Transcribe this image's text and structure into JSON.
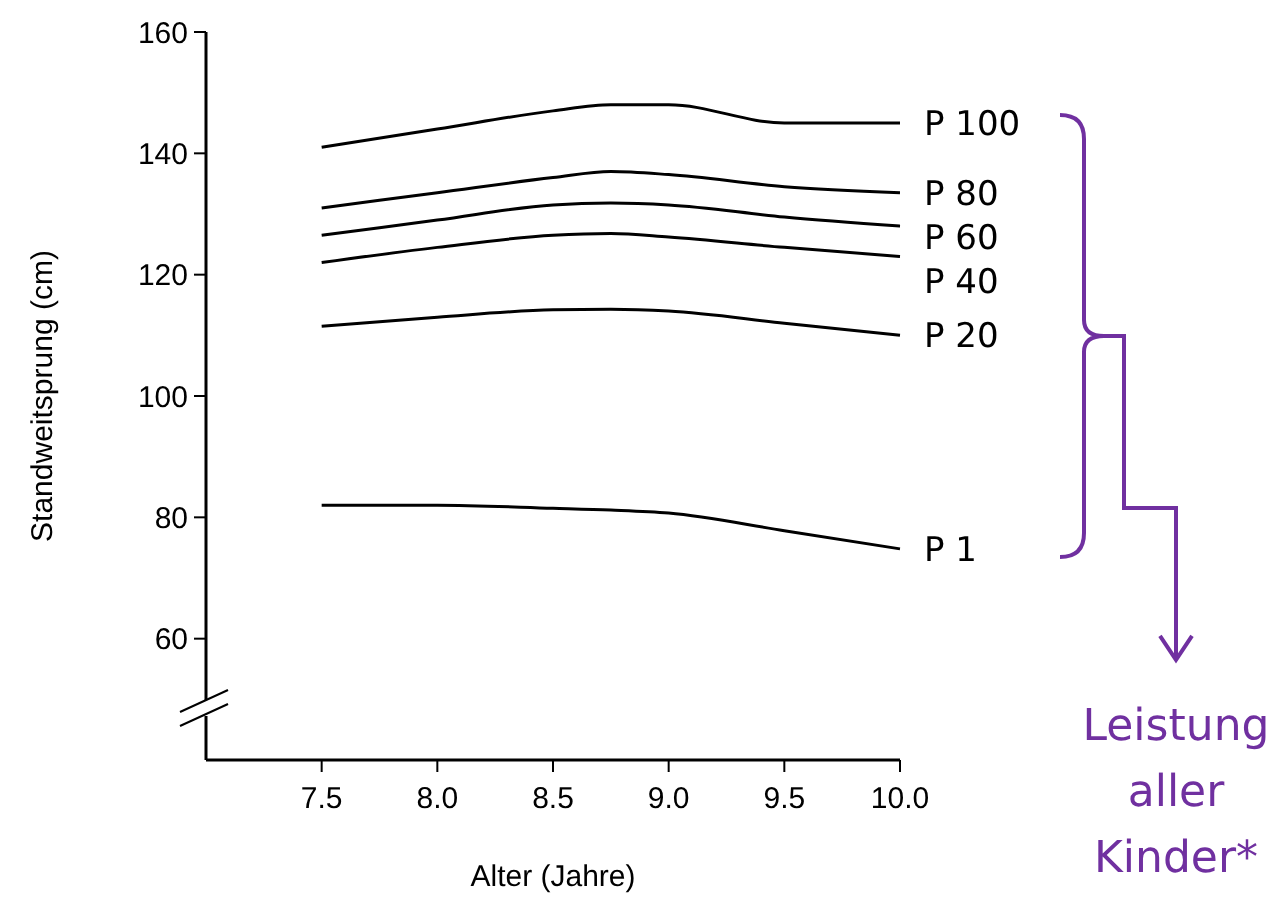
{
  "chart_data": {
    "type": "line",
    "xlabel": "Alter (Jahre)",
    "ylabel": "Standweitsprung (cm)",
    "x": [
      7.5,
      8.0,
      8.5,
      8.75,
      9.0,
      9.5,
      10.0
    ],
    "series": [
      {
        "name": "P 100",
        "color": "#000000",
        "values": [
          141,
          144,
          147,
          148,
          148,
          145,
          145
        ]
      },
      {
        "name": "P 80",
        "color": "#000000",
        "values": [
          131,
          133.5,
          136,
          137,
          136.5,
          134.5,
          133.5
        ]
      },
      {
        "name": "P 60",
        "color": "#000000",
        "values": [
          126.5,
          129,
          131.5,
          131.8,
          131.5,
          129.5,
          128
        ]
      },
      {
        "name": "P 40",
        "color": "#000000",
        "values": [
          122,
          124.5,
          126.5,
          126.8,
          126.2,
          124.5,
          123
        ]
      },
      {
        "name": "P 20",
        "color": "#000000",
        "values": [
          111.5,
          113,
          114.2,
          114.3,
          114,
          112,
          110
        ]
      },
      {
        "name": "P 1",
        "color": "#000000",
        "values": [
          82,
          82,
          81.5,
          81.2,
          80.7,
          77.8,
          74.8
        ]
      }
    ],
    "xlim": [
      7.0,
      10.0
    ],
    "ylim": [
      40,
      160
    ],
    "xticks": [
      {
        "value": 7.5,
        "label": "7.5"
      },
      {
        "value": 8.0,
        "label": "8.0"
      },
      {
        "value": 8.5,
        "label": "8.5"
      },
      {
        "value": 9.0,
        "label": "9.0"
      },
      {
        "value": 9.5,
        "label": "9.5"
      },
      {
        "value": 10.0,
        "label": "10.0"
      }
    ],
    "yticks": [
      60,
      80,
      100,
      120,
      140,
      160
    ],
    "grid": false,
    "marker": "none",
    "line_style": "solid",
    "annotations": [
      "Leistung aller Kinder*"
    ]
  }
}
